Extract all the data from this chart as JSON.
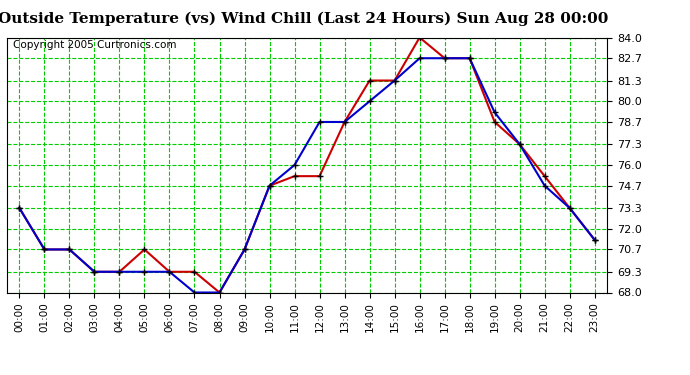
{
  "title": "Outside Temperature (vs) Wind Chill (Last 24 Hours) Sun Aug 28 00:00",
  "copyright": "Copyright 2005 Curtronics.com",
  "hours": [
    "00:00",
    "01:00",
    "02:00",
    "03:00",
    "04:00",
    "05:00",
    "06:00",
    "07:00",
    "08:00",
    "09:00",
    "10:00",
    "11:00",
    "12:00",
    "13:00",
    "14:00",
    "15:00",
    "16:00",
    "17:00",
    "18:00",
    "19:00",
    "20:00",
    "21:00",
    "22:00",
    "23:00"
  ],
  "outside_temp": [
    73.3,
    70.7,
    70.7,
    69.3,
    69.3,
    69.3,
    69.3,
    68.0,
    68.0,
    70.7,
    74.7,
    76.0,
    78.7,
    78.7,
    80.0,
    81.3,
    82.7,
    82.7,
    82.7,
    79.3,
    77.3,
    74.7,
    73.3,
    71.3
  ],
  "wind_chill": [
    73.3,
    70.7,
    70.7,
    69.3,
    69.3,
    70.7,
    69.3,
    69.3,
    68.0,
    70.7,
    74.7,
    75.3,
    75.3,
    78.7,
    81.3,
    81.3,
    84.0,
    82.7,
    82.7,
    78.7,
    77.3,
    75.3,
    73.3,
    71.3
  ],
  "outside_color": "#0000cc",
  "windchill_color": "#cc0000",
  "bg_color": "#ffffff",
  "plot_bg_color": "#ffffff",
  "grid_color": "#00cc00",
  "ymin": 68.0,
  "ymax": 84.0,
  "yticks": [
    68.0,
    69.3,
    70.7,
    72.0,
    73.3,
    74.7,
    76.0,
    77.3,
    78.7,
    80.0,
    81.3,
    82.7,
    84.0
  ],
  "title_fontsize": 11,
  "copyright_fontsize": 7.5,
  "ylabel_fontsize": 8,
  "xlabel_fontsize": 7.5
}
